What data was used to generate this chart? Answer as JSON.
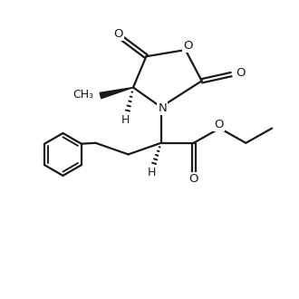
{
  "background_color": "#ffffff",
  "line_color": "#1a1a1a",
  "line_width": 1.6,
  "font_size": 9.5,
  "figsize": [
    3.3,
    3.3
  ],
  "dpi": 100,
  "xlim": [
    0.5,
    9.5
  ],
  "ylim": [
    1.0,
    9.5
  ]
}
